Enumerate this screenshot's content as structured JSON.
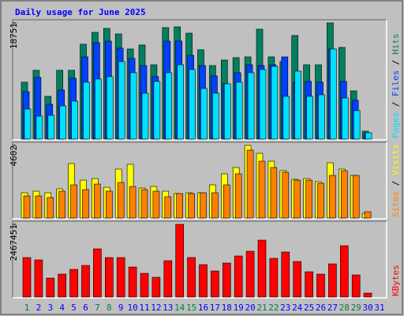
{
  "title": "Daily usage for June 2025",
  "legend_separator": "/",
  "chart_data": [
    {
      "type": "bar",
      "ylim": [
        0,
        18751
      ],
      "yticks": [
        18751
      ],
      "series": [
        {
          "name": "Hits",
          "color": "#008060",
          "values": [
            9187,
            11101,
            6890,
            11101,
            11101,
            15312,
            17226,
            17864,
            16971,
            14546,
            15184,
            11994,
            17992,
            18119,
            17098,
            14419,
            11867,
            12760,
            13143,
            13270,
            17736,
            13270,
            12505,
            16716,
            11994,
            11994,
            18751,
            14802,
            7784,
            1276,
            0
          ]
        },
        {
          "name": "Files",
          "color": "#0040ff",
          "values": [
            7656,
            9953,
            5614,
            7911,
            9825,
            13270,
            15567,
            15822,
            14674,
            13015,
            11867,
            10080,
            15822,
            15822,
            13526,
            11867,
            10208,
            8932,
            10718,
            11994,
            11867,
            11994,
            13270,
            9187,
            9315,
            9187,
            14546,
            9315,
            6252,
            893,
            0
          ]
        },
        {
          "name": "Pages",
          "color": "#00e0ff",
          "values": [
            4849,
            3700,
            3828,
            5359,
            6125,
            9187,
            9698,
            10080,
            12505,
            10718,
            7401,
            9315,
            10718,
            11994,
            11229,
            8166,
            7401,
            8932,
            9187,
            10718,
            11229,
            11739,
            6890,
            10974,
            6890,
            7146,
            14546,
            6635,
            4594,
            1021,
            0
          ]
        }
      ]
    },
    {
      "type": "bar",
      "ylim": [
        0,
        4602
      ],
      "yticks": [
        4602
      ],
      "series": [
        {
          "name": "Visits",
          "color": "#ffff00",
          "values": [
            1600,
            1700,
            1600,
            1850,
            3450,
            2400,
            2500,
            1950,
            3100,
            3400,
            1900,
            2000,
            1700,
            1550,
            1600,
            1600,
            2100,
            2800,
            3200,
            4602,
            4100,
            3600,
            3000,
            2450,
            2500,
            2300,
            3500,
            3100,
            2700,
            300,
            0
          ]
        },
        {
          "name": "Sites",
          "color": "#ff8000",
          "values": [
            1400,
            1400,
            1300,
            1700,
            2100,
            1800,
            2150,
            1700,
            2250,
            2000,
            1800,
            1700,
            1350,
            1550,
            1550,
            1600,
            1600,
            2100,
            2800,
            4300,
            3600,
            3200,
            2900,
            2400,
            2400,
            2200,
            2700,
            3000,
            2700,
            400,
            0
          ]
        }
      ]
    },
    {
      "type": "bar",
      "ylim": [
        0,
        2467451
      ],
      "yticks": [
        2467451
      ],
      "categories": [
        "1",
        "2",
        "3",
        "4",
        "5",
        "6",
        "7",
        "8",
        "9",
        "10",
        "11",
        "12",
        "13",
        "14",
        "15",
        "16",
        "17",
        "18",
        "19",
        "20",
        "21",
        "22",
        "23",
        "24",
        "25",
        "26",
        "27",
        "28",
        "29",
        "30",
        "31"
      ],
      "category_colors": [
        "#008040",
        "#0000ff",
        "#0000ff",
        "#0000ff",
        "#0000ff",
        "#0000ff",
        "#008040",
        "#008040",
        "#0000ff",
        "#0000ff",
        "#0000ff",
        "#0000ff",
        "#0000ff",
        "#008040",
        "#008040",
        "#0000ff",
        "#0000ff",
        "#0000ff",
        "#0000ff",
        "#0000ff",
        "#008040",
        "#008040",
        "#0000ff",
        "#0000ff",
        "#0000ff",
        "#0000ff",
        "#0000ff",
        "#008040",
        "#008040",
        "#0000ff",
        "#0000ff"
      ],
      "series": [
        {
          "name": "KBytes",
          "color": "#ff0000",
          "values": [
            1341000,
            1260540,
            643680,
            777780,
            938700,
            1072800,
            1636020,
            1341000,
            1341000,
            1019160,
            804600,
            670500,
            1233720,
            2467451,
            1341000,
            1099620,
            885060,
            1153260,
            1394640,
            1555560,
            1931040,
            1314180,
            1528740,
            1206900,
            858240,
            777780,
            1126440,
            1743300,
            750960,
            134100,
            0
          ]
        }
      ]
    }
  ]
}
